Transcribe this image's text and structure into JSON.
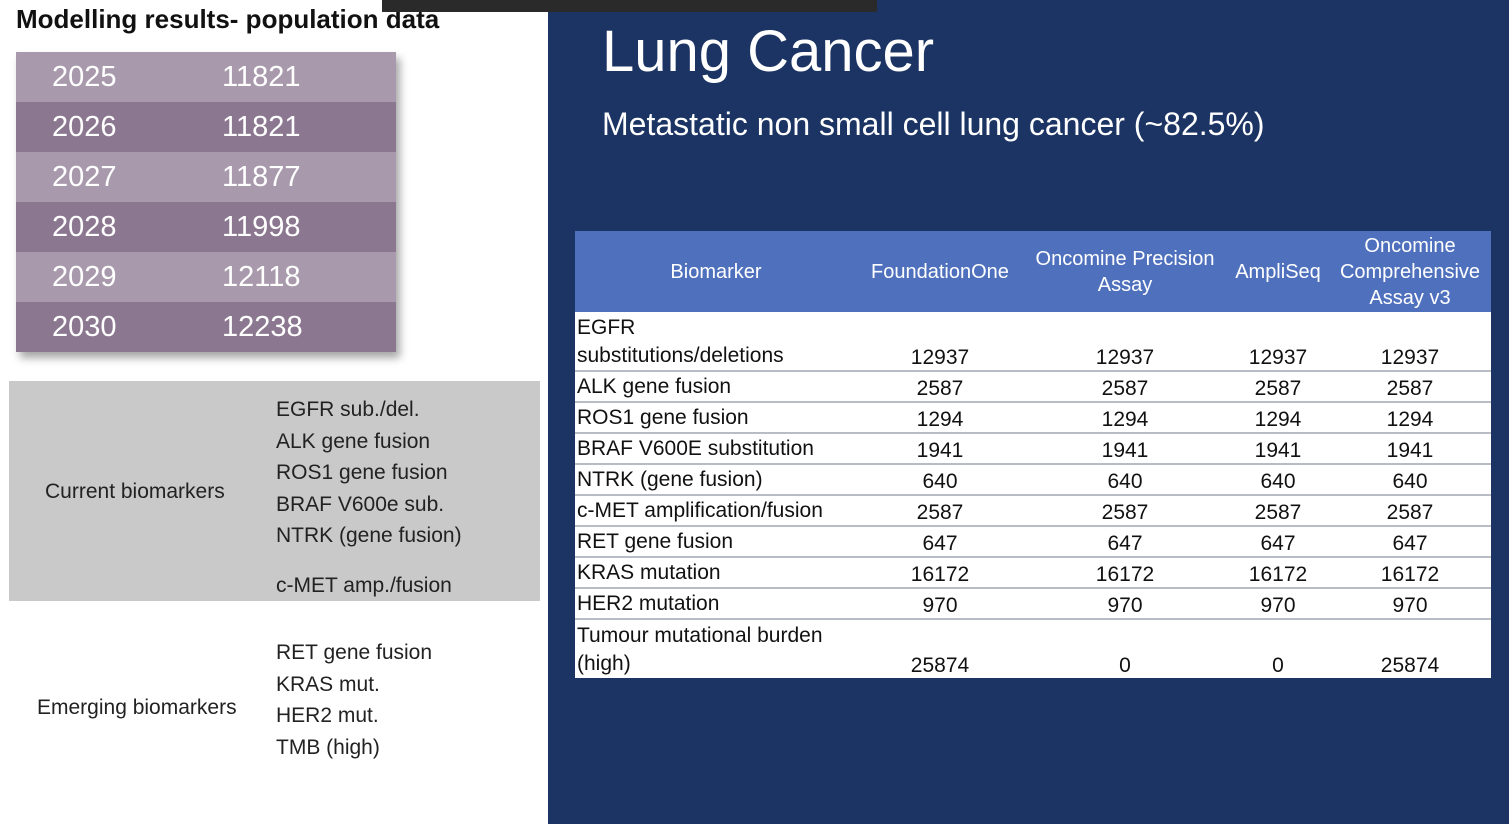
{
  "left": {
    "title": "Modelling results- population data",
    "population": [
      {
        "year": "2025",
        "value": "11821"
      },
      {
        "year": "2026",
        "value": "11821"
      },
      {
        "year": "2027",
        "value": "11877"
      },
      {
        "year": "2028",
        "value": "11998"
      },
      {
        "year": "2029",
        "value": "12118"
      },
      {
        "year": "2030",
        "value": "12238"
      }
    ],
    "current": {
      "label": "Current biomarkers",
      "items": [
        "EGFR sub./del.",
        "ALK gene fusion",
        "ROS1 gene fusion",
        "BRAF V600e sub.",
        "NTRK (gene fusion)"
      ],
      "extra": "c-MET amp./fusion"
    },
    "emerging": {
      "label": "Emerging biomarkers",
      "items": [
        "RET gene fusion",
        "KRAS mut.",
        "HER2 mut.",
        "TMB (high)"
      ]
    }
  },
  "right": {
    "title": "Lung Cancer",
    "subtitle": "Metastatic non small cell lung cancer (~82.5%)",
    "table": {
      "headers": [
        "Biomarker",
        "FoundationOne",
        "Oncomine Precision Assay",
        "AmpliSeq",
        "Oncomine Comprehensive Assay v3"
      ],
      "rows": [
        {
          "name": [
            "EGFR",
            "substitutions/deletions"
          ],
          "vals": [
            "12937",
            "12937",
            "12937",
            "12937"
          ]
        },
        {
          "name": [
            "ALK gene fusion"
          ],
          "vals": [
            "2587",
            "2587",
            "2587",
            "2587"
          ]
        },
        {
          "name": [
            "ROS1 gene fusion"
          ],
          "vals": [
            "1294",
            "1294",
            "1294",
            "1294"
          ]
        },
        {
          "name": [
            "BRAF V600E substitution"
          ],
          "vals": [
            "1941",
            "1941",
            "1941",
            "1941"
          ]
        },
        {
          "name": [
            "NTRK (gene fusion)"
          ],
          "vals": [
            "640",
            "640",
            "640",
            "640"
          ]
        },
        {
          "name": [
            "c-MET amplification/fusion"
          ],
          "vals": [
            "2587",
            "2587",
            "2587",
            "2587"
          ]
        },
        {
          "name": [
            "RET gene fusion"
          ],
          "vals": [
            "647",
            "647",
            "647",
            "647"
          ]
        },
        {
          "name": [
            "KRAS mutation"
          ],
          "vals": [
            "16172",
            "16172",
            "16172",
            "16172"
          ]
        },
        {
          "name": [
            "HER2 mutation"
          ],
          "vals": [
            "970",
            "970",
            "970",
            "970"
          ]
        },
        {
          "name": [
            "Tumour mutational burden",
            "(high)"
          ],
          "vals": [
            "25874",
            "0",
            "0",
            "25874"
          ]
        }
      ]
    }
  }
}
